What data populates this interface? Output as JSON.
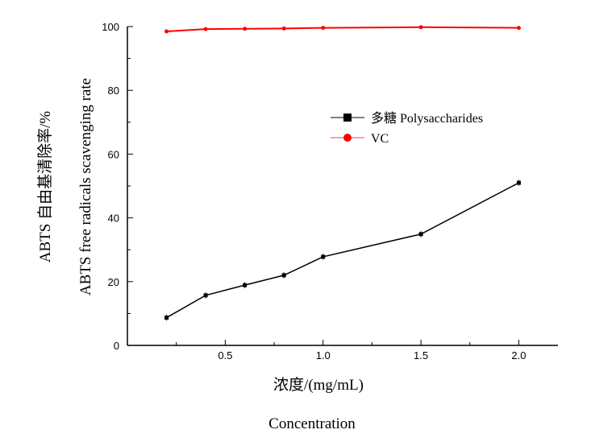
{
  "chart_data": {
    "type": "line",
    "xlabel_cn": "浓度/(mg/mL)",
    "xlabel_en": "Concentration",
    "ylabel_cn": "ABTS 自由基清除率/%",
    "ylabel_en": "ABTS free radicals scavenging rate",
    "xlim": [
      0,
      2.2
    ],
    "ylim": [
      0,
      100
    ],
    "xticks": [
      0.5,
      1.0,
      1.5,
      2.0
    ],
    "xtick_labels": [
      "0.5",
      "1.0",
      "1.5",
      "2.0"
    ],
    "yticks": [
      0,
      20,
      40,
      60,
      80,
      100
    ],
    "ytick_labels": [
      "0",
      "20",
      "40",
      "60",
      "80",
      "100"
    ],
    "grid": false,
    "legend_position": "center-right",
    "x": [
      0.2,
      0.4,
      0.6,
      0.8,
      1.0,
      1.5,
      2.0
    ],
    "series": [
      {
        "name": "多糖 Polysaccharides",
        "values": [
          8.7,
          15.7,
          18.9,
          22.0,
          27.8,
          34.9,
          51.0
        ],
        "color": "#000000",
        "marker": "square",
        "error_bars": true
      },
      {
        "name": "VC",
        "values": [
          98.5,
          99.2,
          99.3,
          99.4,
          99.6,
          99.8,
          99.6
        ],
        "color": "#ff0000",
        "marker": "circle"
      }
    ]
  }
}
